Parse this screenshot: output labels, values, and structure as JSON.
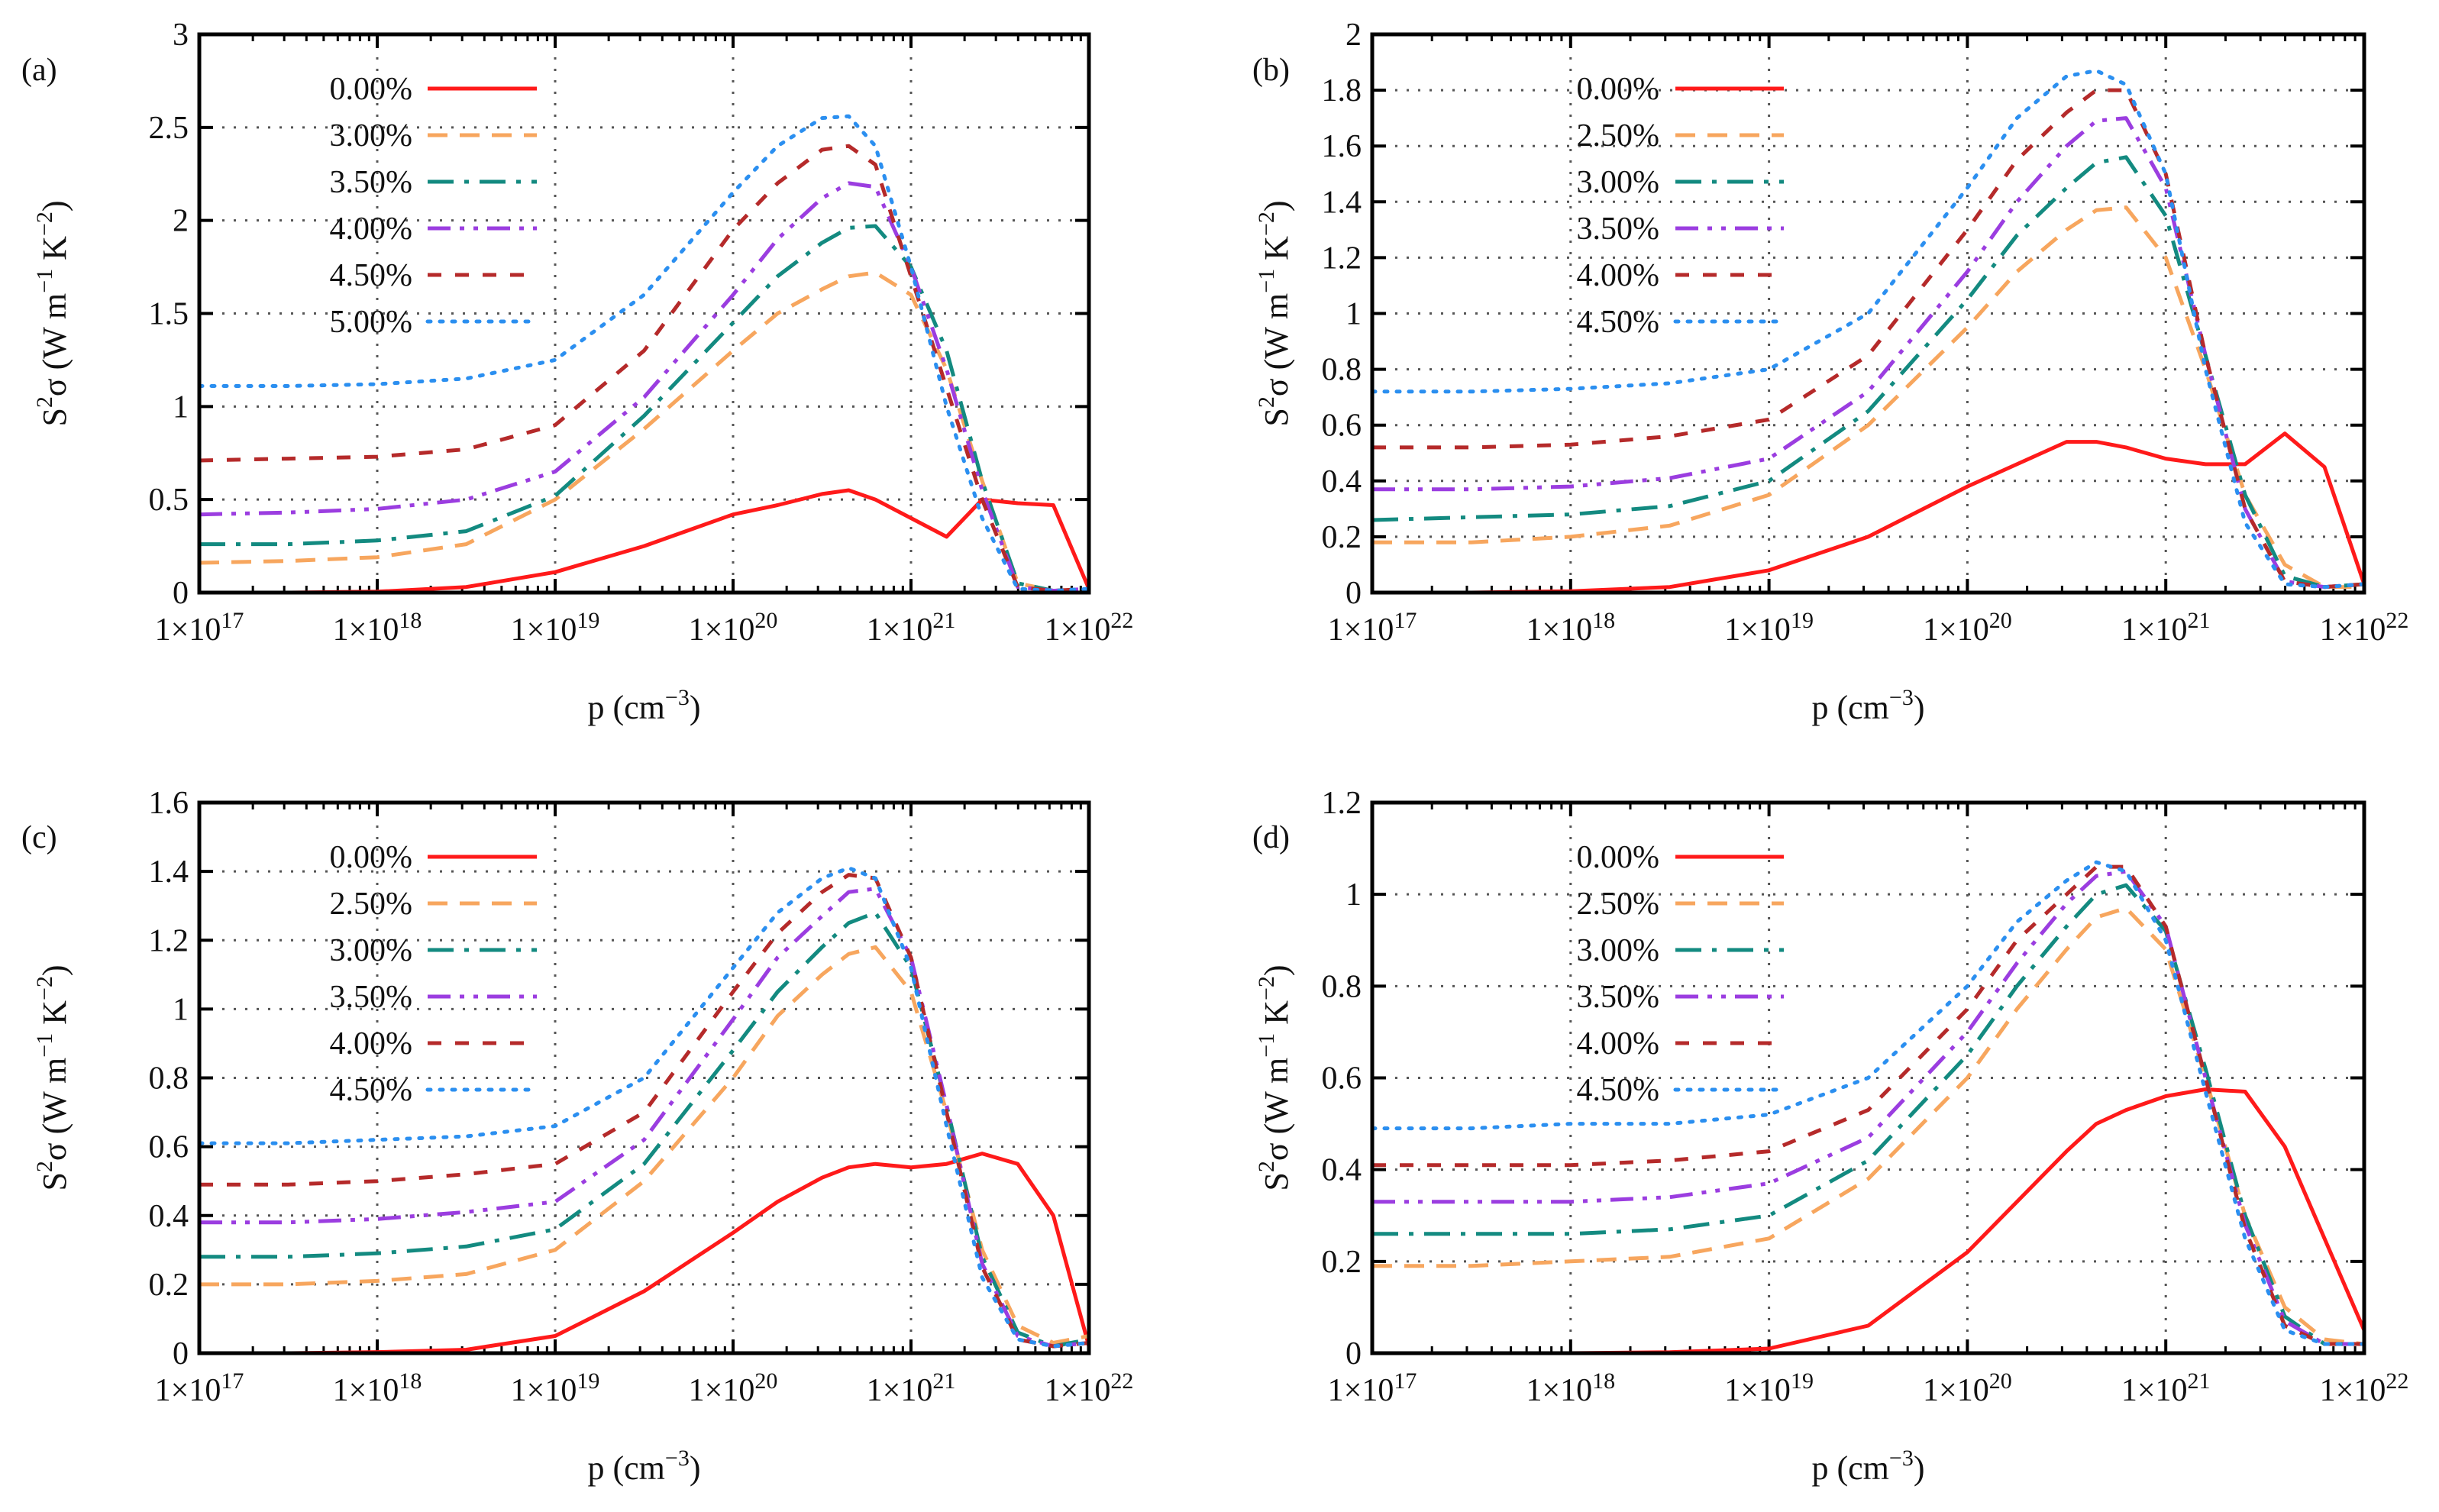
{
  "chart_data": [
    {
      "panel_label": "(a)",
      "type": "line",
      "xscale": "log",
      "xlabel": {
        "base": "p (cm",
        "sup": "−3",
        "end": ")"
      },
      "ylabel": {
        "base": "S",
        "sup1": "2",
        "mid": "σ (W m",
        "sup2": "−1",
        "mid2": " K",
        "sup3": "−2",
        "end": ")"
      },
      "xlim_log10": [
        17,
        22
      ],
      "ylim": [
        0,
        3
      ],
      "yticks": [
        "0",
        "0.5",
        "1",
        "1.5",
        "2",
        "2.5",
        "3"
      ],
      "xticks": [
        {
          "base": "1×10",
          "exp": "17"
        },
        {
          "base": "1×10",
          "exp": "18"
        },
        {
          "base": "1×10",
          "exp": "19"
        },
        {
          "base": "1×10",
          "exp": "20"
        },
        {
          "base": "1×10",
          "exp": "21"
        },
        {
          "base": "1×10",
          "exp": "22"
        }
      ],
      "grid": true,
      "legend_position": "top-left",
      "x_log10": [
        17,
        17.5,
        18,
        18.5,
        19,
        19.5,
        20,
        20.25,
        20.5,
        20.65,
        20.8,
        21,
        21.2,
        21.4,
        21.6,
        21.8,
        22
      ],
      "series": [
        {
          "name": "0.00%",
          "style": "solid",
          "values": [
            0,
            0,
            0.005,
            0.03,
            0.11,
            0.25,
            0.42,
            0.47,
            0.53,
            0.55,
            0.5,
            0.4,
            0.3,
            0.5,
            0.48,
            0.47,
            0.02
          ]
        },
        {
          "name": "3.00%",
          "style": "dash",
          "values": [
            0.16,
            0.17,
            0.19,
            0.26,
            0.5,
            0.88,
            1.3,
            1.5,
            1.63,
            1.7,
            1.72,
            1.6,
            1.2,
            0.6,
            0.05,
            0.01,
            0.02
          ]
        },
        {
          "name": "3.50%",
          "style": "dashdot",
          "values": [
            0.26,
            0.26,
            0.28,
            0.33,
            0.52,
            0.95,
            1.45,
            1.7,
            1.88,
            1.96,
            1.97,
            1.75,
            1.3,
            0.6,
            0.05,
            0.01,
            0.02
          ]
        },
        {
          "name": "4.00%",
          "style": "dashdotdot",
          "values": [
            0.42,
            0.43,
            0.45,
            0.5,
            0.65,
            1.05,
            1.6,
            1.9,
            2.12,
            2.2,
            2.18,
            1.75,
            1.2,
            0.55,
            0.03,
            0.01,
            0.02
          ]
        },
        {
          "name": "4.50%",
          "style": "shortdash",
          "values": [
            0.71,
            0.72,
            0.73,
            0.77,
            0.9,
            1.3,
            1.95,
            2.2,
            2.38,
            2.4,
            2.3,
            1.7,
            1.1,
            0.5,
            0.03,
            0.01,
            0.02
          ]
        },
        {
          "name": "5.00%",
          "style": "dot",
          "values": [
            1.11,
            1.11,
            1.12,
            1.15,
            1.25,
            1.6,
            2.15,
            2.4,
            2.55,
            2.56,
            2.4,
            1.75,
            1.0,
            0.4,
            0.02,
            0.01,
            0.02
          ]
        }
      ]
    },
    {
      "panel_label": "(b)",
      "type": "line",
      "xscale": "log",
      "xlabel": {
        "base": "p (cm",
        "sup": "−3",
        "end": ")"
      },
      "ylabel": {
        "base": "S",
        "sup1": "2",
        "mid": "σ (W m",
        "sup2": "−1",
        "mid2": " K",
        "sup3": "−2",
        "end": ")"
      },
      "xlim_log10": [
        17,
        22
      ],
      "ylim": [
        0,
        2
      ],
      "yticks": [
        "0",
        "0.2",
        "0.4",
        "0.6",
        "0.8",
        "1",
        "1.2",
        "1.4",
        "1.6",
        "1.8",
        "2"
      ],
      "xticks": [
        {
          "base": "1×10",
          "exp": "17"
        },
        {
          "base": "1×10",
          "exp": "18"
        },
        {
          "base": "1×10",
          "exp": "19"
        },
        {
          "base": "1×10",
          "exp": "20"
        },
        {
          "base": "1×10",
          "exp": "21"
        },
        {
          "base": "1×10",
          "exp": "22"
        }
      ],
      "grid": true,
      "legend_position": "top-left",
      "x_log10": [
        17,
        17.5,
        18,
        18.5,
        19,
        19.5,
        20,
        20.25,
        20.5,
        20.65,
        20.8,
        21,
        21.2,
        21.4,
        21.6,
        21.8,
        22
      ],
      "series": [
        {
          "name": "0.00%",
          "style": "solid",
          "values": [
            0,
            0,
            0.005,
            0.02,
            0.08,
            0.2,
            0.38,
            0.46,
            0.54,
            0.54,
            0.52,
            0.48,
            0.46,
            0.46,
            0.57,
            0.45,
            0.03
          ]
        },
        {
          "name": "2.50%",
          "style": "dash",
          "values": [
            0.18,
            0.18,
            0.2,
            0.24,
            0.35,
            0.6,
            0.95,
            1.15,
            1.3,
            1.37,
            1.38,
            1.2,
            0.8,
            0.35,
            0.1,
            0.02,
            0.02
          ]
        },
        {
          "name": "3.00%",
          "style": "dashdot",
          "values": [
            0.26,
            0.27,
            0.28,
            0.31,
            0.4,
            0.65,
            1.05,
            1.28,
            1.45,
            1.54,
            1.56,
            1.35,
            0.85,
            0.35,
            0.06,
            0.02,
            0.03
          ]
        },
        {
          "name": "3.50%",
          "style": "dashdotdot",
          "values": [
            0.37,
            0.37,
            0.38,
            0.41,
            0.48,
            0.72,
            1.15,
            1.4,
            1.6,
            1.69,
            1.7,
            1.45,
            0.85,
            0.3,
            0.04,
            0.02,
            0.03
          ]
        },
        {
          "name": "4.00%",
          "style": "shortdash",
          "values": [
            0.52,
            0.52,
            0.53,
            0.56,
            0.62,
            0.85,
            1.3,
            1.55,
            1.72,
            1.8,
            1.8,
            1.5,
            0.85,
            0.3,
            0.04,
            0.02,
            0.03
          ]
        },
        {
          "name": "4.50%",
          "style": "dot",
          "values": [
            0.72,
            0.72,
            0.73,
            0.75,
            0.8,
            1.0,
            1.45,
            1.7,
            1.85,
            1.87,
            1.82,
            1.5,
            0.8,
            0.25,
            0.03,
            0.02,
            0.03
          ]
        }
      ]
    },
    {
      "panel_label": "(c)",
      "type": "line",
      "xscale": "log",
      "xlabel": {
        "base": "p (cm",
        "sup": "−3",
        "end": ")"
      },
      "ylabel": {
        "base": "S",
        "sup1": "2",
        "mid": "σ (W m",
        "sup2": "−1",
        "mid2": " K",
        "sup3": "−2",
        "end": ")"
      },
      "xlim_log10": [
        17,
        22
      ],
      "ylim": [
        0,
        1.6
      ],
      "yticks": [
        "0",
        "0.2",
        "0.4",
        "0.6",
        "0.8",
        "1",
        "1.2",
        "1.4",
        "1.6"
      ],
      "xticks": [
        {
          "base": "1×10",
          "exp": "17"
        },
        {
          "base": "1×10",
          "exp": "18"
        },
        {
          "base": "1×10",
          "exp": "19"
        },
        {
          "base": "1×10",
          "exp": "20"
        },
        {
          "base": "1×10",
          "exp": "21"
        },
        {
          "base": "1×10",
          "exp": "22"
        }
      ],
      "grid": true,
      "legend_position": "top-left",
      "x_log10": [
        17,
        17.5,
        18,
        18.5,
        19,
        19.5,
        20,
        20.25,
        20.5,
        20.65,
        20.8,
        21,
        21.2,
        21.4,
        21.6,
        21.8,
        22
      ],
      "series": [
        {
          "name": "0.00%",
          "style": "solid",
          "values": [
            0,
            0,
            0.003,
            0.01,
            0.05,
            0.18,
            0.35,
            0.44,
            0.51,
            0.54,
            0.55,
            0.54,
            0.55,
            0.58,
            0.55,
            0.4,
            0.02
          ]
        },
        {
          "name": "2.50%",
          "style": "dash",
          "values": [
            0.2,
            0.2,
            0.21,
            0.23,
            0.3,
            0.5,
            0.8,
            0.98,
            1.1,
            1.16,
            1.18,
            1.05,
            0.7,
            0.3,
            0.08,
            0.03,
            0.05
          ]
        },
        {
          "name": "3.00%",
          "style": "dashdot",
          "values": [
            0.28,
            0.28,
            0.29,
            0.31,
            0.36,
            0.55,
            0.88,
            1.05,
            1.18,
            1.25,
            1.28,
            1.12,
            0.72,
            0.28,
            0.06,
            0.02,
            0.04
          ]
        },
        {
          "name": "3.50%",
          "style": "dashdotdot",
          "values": [
            0.38,
            0.38,
            0.39,
            0.41,
            0.44,
            0.62,
            0.97,
            1.15,
            1.27,
            1.34,
            1.35,
            1.15,
            0.72,
            0.26,
            0.05,
            0.02,
            0.03
          ]
        },
        {
          "name": "4.00%",
          "style": "shortdash",
          "values": [
            0.49,
            0.49,
            0.5,
            0.52,
            0.55,
            0.7,
            1.05,
            1.22,
            1.34,
            1.39,
            1.38,
            1.15,
            0.7,
            0.25,
            0.04,
            0.02,
            0.03
          ]
        },
        {
          "name": "4.50%",
          "style": "dot",
          "values": [
            0.61,
            0.61,
            0.62,
            0.63,
            0.66,
            0.8,
            1.12,
            1.28,
            1.38,
            1.41,
            1.38,
            1.12,
            0.66,
            0.22,
            0.04,
            0.02,
            0.03
          ]
        }
      ]
    },
    {
      "panel_label": "(d)",
      "type": "line",
      "xscale": "log",
      "xlabel": {
        "base": "p (cm",
        "sup": "−3",
        "end": ")"
      },
      "ylabel": {
        "base": "S",
        "sup1": "2",
        "mid": "σ (W m",
        "sup2": "−1",
        "mid2": " K",
        "sup3": "−2",
        "end": ")"
      },
      "xlim_log10": [
        17,
        22
      ],
      "ylim": [
        0,
        1.2
      ],
      "yticks": [
        "0",
        "0.2",
        "0.4",
        "0.6",
        "0.8",
        "1",
        "1.2"
      ],
      "xticks": [
        {
          "base": "1×10",
          "exp": "17"
        },
        {
          "base": "1×10",
          "exp": "18"
        },
        {
          "base": "1×10",
          "exp": "19"
        },
        {
          "base": "1×10",
          "exp": "20"
        },
        {
          "base": "1×10",
          "exp": "21"
        },
        {
          "base": "1×10",
          "exp": "22"
        }
      ],
      "grid": true,
      "legend_position": "top-left",
      "x_log10": [
        17,
        17.5,
        18,
        18.5,
        19,
        19.5,
        20,
        20.25,
        20.5,
        20.65,
        20.8,
        21,
        21.2,
        21.4,
        21.6,
        21.8,
        22
      ],
      "series": [
        {
          "name": "0.00%",
          "style": "solid",
          "values": [
            0,
            0,
            0,
            0.002,
            0.01,
            0.06,
            0.22,
            0.33,
            0.44,
            0.5,
            0.53,
            0.56,
            0.575,
            0.57,
            0.45,
            0.25,
            0.05
          ]
        },
        {
          "name": "2.50%",
          "style": "dash",
          "values": [
            0.19,
            0.19,
            0.2,
            0.21,
            0.25,
            0.38,
            0.6,
            0.75,
            0.88,
            0.95,
            0.97,
            0.88,
            0.6,
            0.3,
            0.1,
            0.03,
            0.02
          ]
        },
        {
          "name": "3.00%",
          "style": "dashdot",
          "values": [
            0.26,
            0.26,
            0.26,
            0.27,
            0.3,
            0.42,
            0.65,
            0.8,
            0.93,
            1.0,
            1.02,
            0.92,
            0.62,
            0.3,
            0.08,
            0.02,
            0.02
          ]
        },
        {
          "name": "3.50%",
          "style": "dashdotdot",
          "values": [
            0.33,
            0.33,
            0.33,
            0.34,
            0.37,
            0.47,
            0.7,
            0.85,
            0.98,
            1.04,
            1.05,
            0.93,
            0.6,
            0.28,
            0.07,
            0.02,
            0.02
          ]
        },
        {
          "name": "4.00%",
          "style": "shortdash",
          "values": [
            0.41,
            0.41,
            0.41,
            0.42,
            0.44,
            0.53,
            0.75,
            0.9,
            1.0,
            1.06,
            1.06,
            0.93,
            0.6,
            0.27,
            0.06,
            0.02,
            0.02
          ]
        },
        {
          "name": "4.50%",
          "style": "dot",
          "values": [
            0.49,
            0.49,
            0.5,
            0.5,
            0.52,
            0.6,
            0.8,
            0.94,
            1.03,
            1.07,
            1.05,
            0.9,
            0.57,
            0.25,
            0.05,
            0.02,
            0.02
          ]
        }
      ]
    }
  ],
  "series_colors": [
    "#ff1a1a",
    "#f7a65e",
    "#138a80",
    "#9b3de0",
    "#b52a2a",
    "#2b8ff0"
  ]
}
